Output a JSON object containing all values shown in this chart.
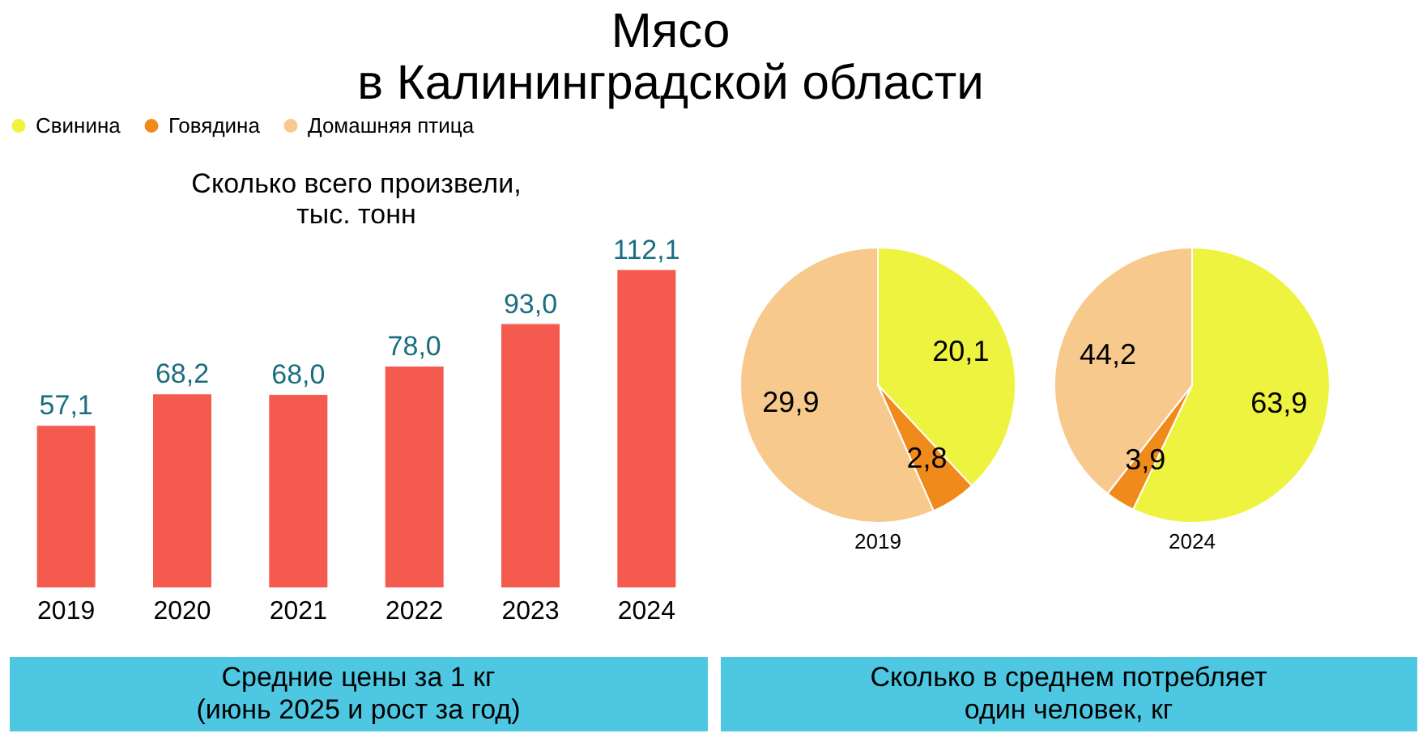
{
  "chart_data": [
    {
      "type": "bar",
      "title": "Мясо\nв Калининградской области",
      "subtitle": "Сколько всего произвели,\nтыс. тонн",
      "categories": [
        "2019",
        "2020",
        "2021",
        "2022",
        "2023",
        "2024"
      ],
      "values": [
        57.1,
        68.2,
        68.0,
        78.0,
        93.0,
        112.1
      ],
      "color": "#f55a4e",
      "data_labels": true,
      "value_labels": [
        "57,1",
        "68,2",
        "68,0",
        "78,0",
        "93,0",
        "112,1"
      ],
      "annotations": [
        "Средние цены за 1 кг\n(июнь 2025 и рост за год)"
      ]
    },
    {
      "type": "pie",
      "title": "2019",
      "categories": [
        "Свинина",
        "Говядина",
        "Домашняя птица"
      ],
      "values": [
        20.1,
        2.8,
        29.9
      ],
      "colors": [
        "#eef33f",
        "#f08a1a",
        "#f7c98c"
      ],
      "legend": "top",
      "value_labels": [
        "20,1",
        "2,8",
        "29,9"
      ],
      "annotations": [
        "Сколько в среднем потребляет\nодин человек, кг"
      ]
    },
    {
      "type": "pie",
      "title": "2024",
      "categories": [
        null,
        null,
        null
      ],
      "values": [
        63.9,
        3.9,
        44.2
      ],
      "colors": [
        "#eef33f",
        "#f08a1a",
        "#f7c98c"
      ],
      "value_labels": [
        "63,9",
        "3,9",
        "44,2"
      ]
    }
  ]
}
